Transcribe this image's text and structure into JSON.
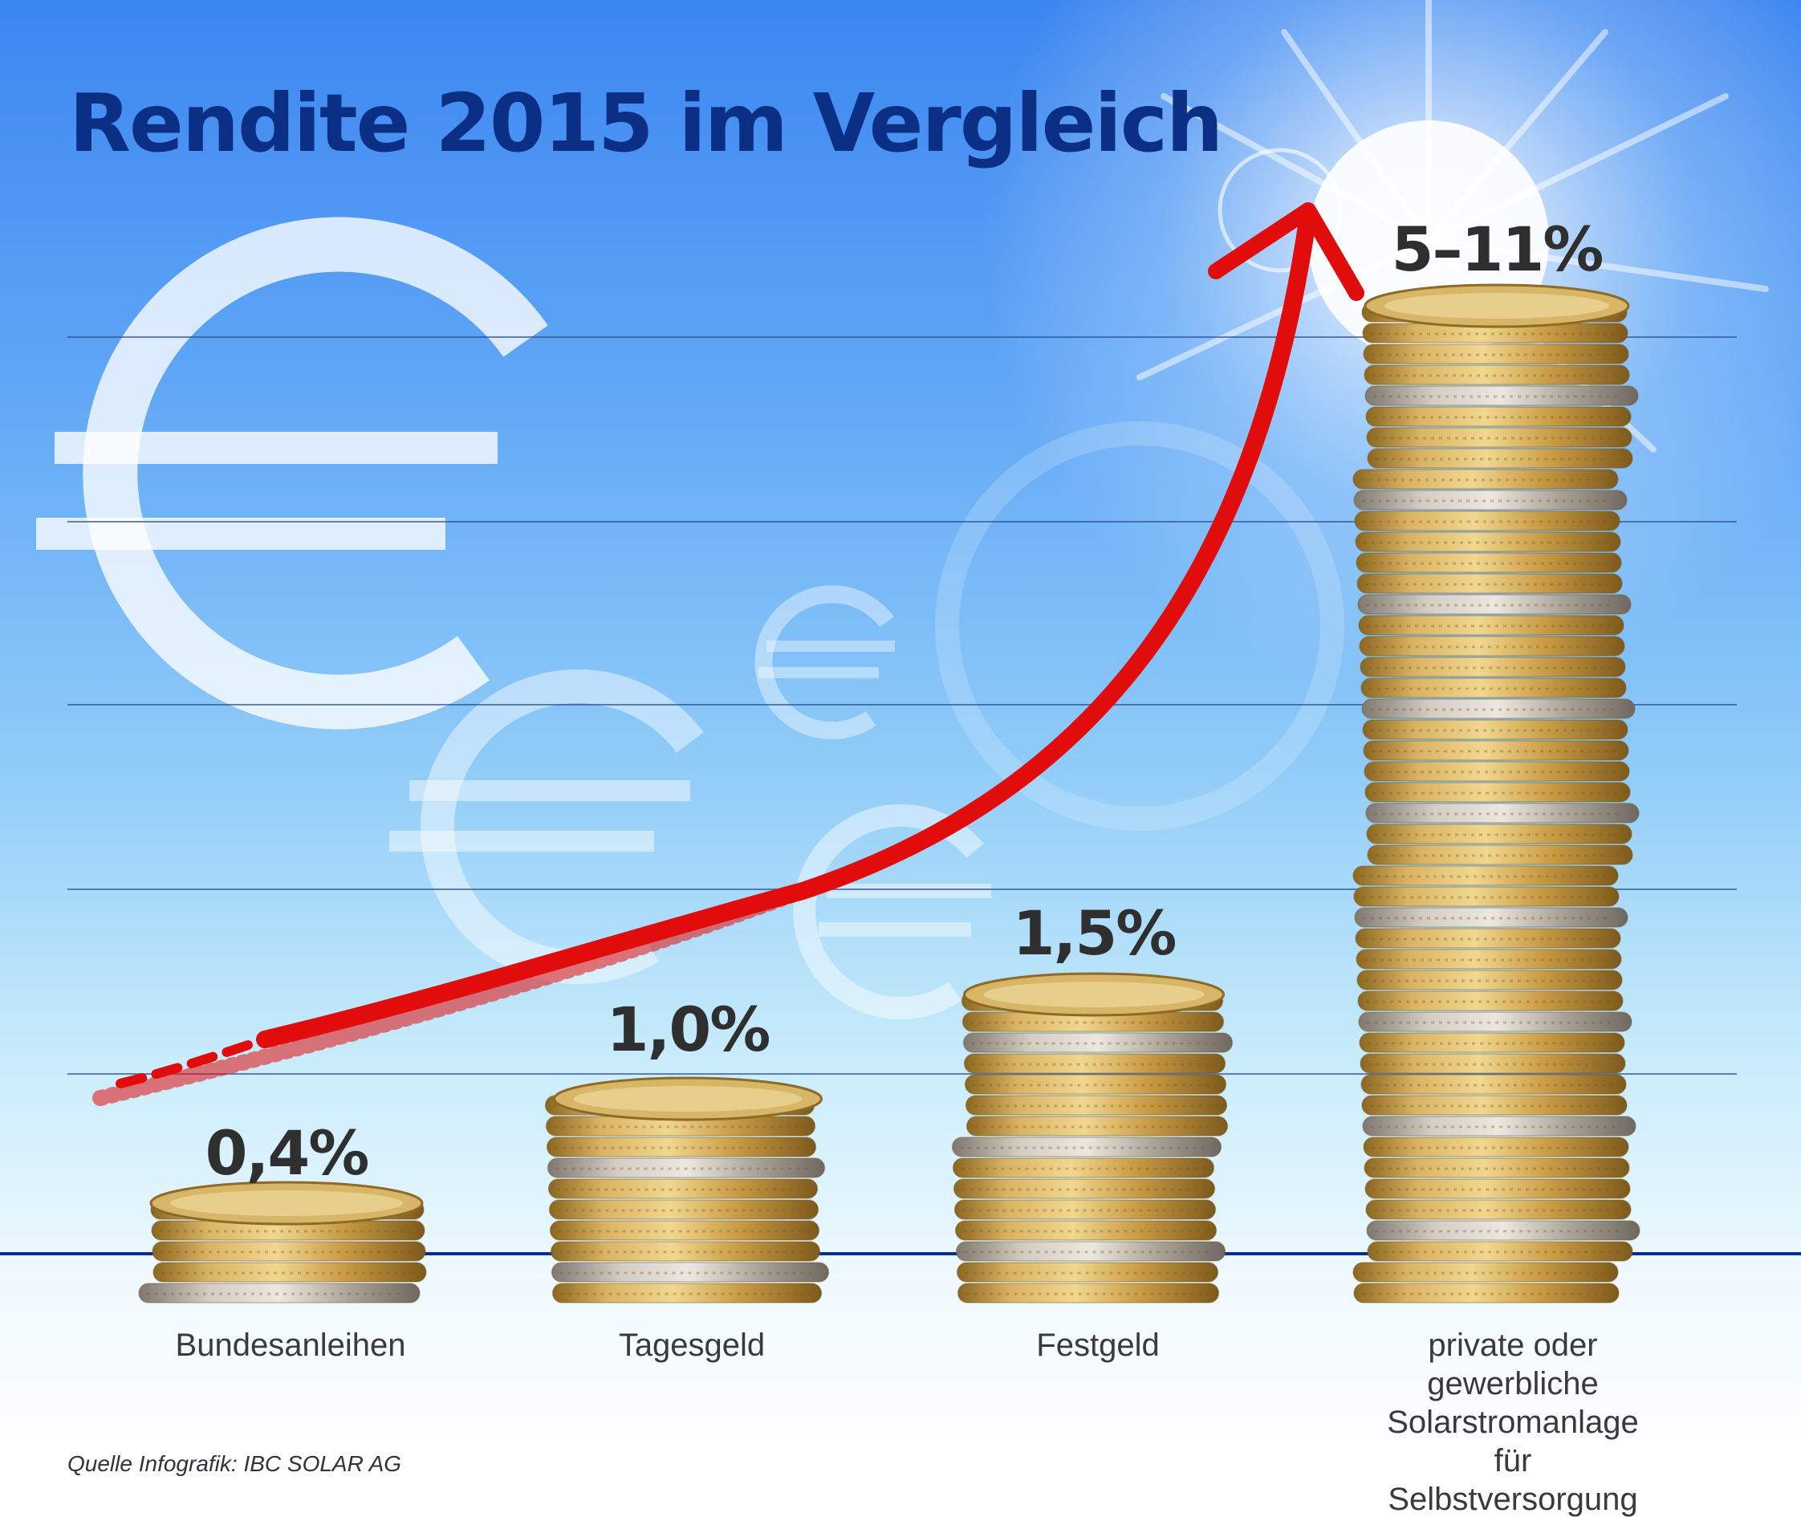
{
  "chart_data": {
    "type": "bar",
    "title": "Rendite 2015 im Vergleich",
    "categories": [
      "Bundesanleihen",
      "Tagesgeld",
      "Festgeld",
      "private oder gewerbliche\nSolarstromanlage\nfür Selbstversorgung"
    ],
    "value_labels": [
      "0,4%",
      "1,0%",
      "1,5%",
      "5–11%"
    ],
    "values": [
      0.4,
      1.0,
      1.5,
      11
    ],
    "value_range_last": [
      5,
      11
    ],
    "bar_style": "coin stacks",
    "grid": true,
    "trend_arrow": "red, rising"
  },
  "source": "Quelle Infografik: IBC SOLAR AG",
  "colors": {
    "title": "#0c2f86",
    "baseline": "#0c2f86",
    "gridline": "#2f4f96",
    "arrow": "#e10d0d",
    "coin_gold": "#c9a04a",
    "coin_silver": "#b3aca2",
    "sky_top": "#3c86f0",
    "sky_bottom": "#ffffff"
  },
  "icons": [
    "euro-symbol-icon",
    "sun-flare-icon"
  ]
}
